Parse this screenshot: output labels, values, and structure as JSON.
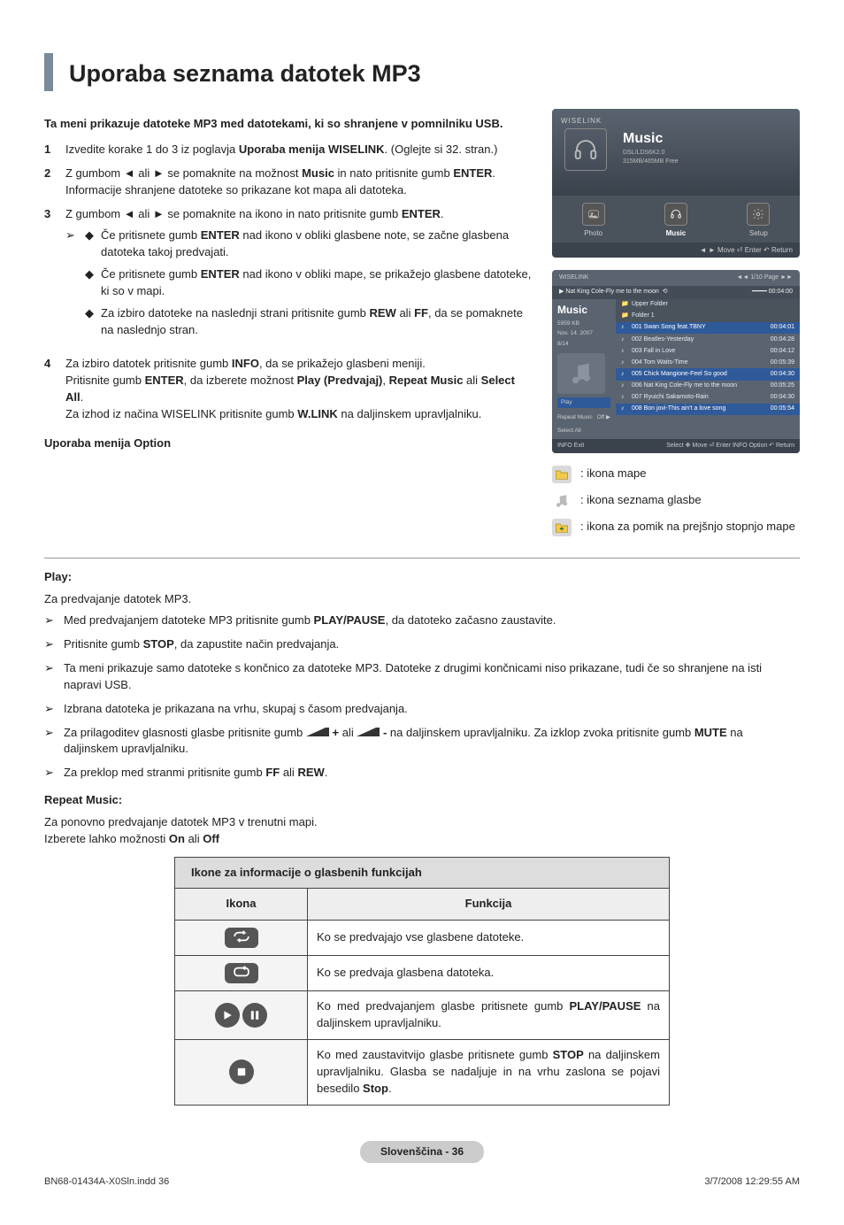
{
  "title": "Uporaba seznama datotek MP3",
  "intro": "Ta meni prikazuje datoteke MP3 med datotekami, ki so shranjene v pomnilniku USB.",
  "steps": [
    {
      "num": "1",
      "html": "Izvedite korake 1 do 3 iz poglavja <b>Uporaba menija WISELINK</b>. (Oglejte si 32. stran.)"
    },
    {
      "num": "2",
      "html": "Z gumbom ◄ ali ► se pomaknite na možnost <b>Music</b> in nato pritisnite gumb <b>ENTER</b>. Informacije shranjene datoteke so prikazane kot mapa ali datoteka."
    },
    {
      "num": "3",
      "html": "Z gumbom ◄ ali ► se pomaknite na ikono in nato pritisnite gumb <b>ENTER</b>.",
      "diamonds": [
        "Če pritisnete gumb <b>ENTER</b> nad ikono v obliki glasbene note, se začne glasbena datoteka takoj predvajati.",
        "Če pritisnete gumb <b>ENTER</b> nad ikono v obliki mape, se prikažejo glasbene datoteke, ki so v mapi.",
        "Za izbiro datoteke na naslednji strani pritisnite gumb <b>REW</b> ali <b>FF</b>, da se pomaknete na naslednjo stran."
      ]
    },
    {
      "num": "4",
      "html": "Za izbiro datotek pritisnite gumb <b>INFO</b>, da se prikažejo glasbeni meniji.<br>Pritisnite gumb <b>ENTER</b>, da izberete možnost <b>Play (Predvajaj)</b>, <b>Repeat Music</b> ali <b>Select All</b>.<br>Za izhod iz načina WISELINK pritisnite gumb <b>W.LINK</b> na daljinskem upravljalniku."
    }
  ],
  "option_heading": "Uporaba menija Option",
  "play": {
    "label": "Play:",
    "sub": "Za predvajanje datotek MP3.",
    "notes": [
      "Med predvajanjem datoteke MP3 pritisnite gumb <b>PLAY/PAUSE</b>, da datoteko začasno zaustavite.",
      "Pritisnite gumb <b>STOP</b>, da zapustite način predvajanja.",
      "Ta meni prikazuje samo datoteke s končnico za datoteke MP3. Datoteke z drugimi končnicami niso prikazane, tudi če so shranjene na isti napravi USB.",
      "Izbrana datoteka je prikazana na vrhu, skupaj s časom predvajanja.",
      "Za prilagoditev glasnosti glasbe pritisnite gumb <span class=\"vol-icon\"></span> <b>+</b> ali <span class=\"vol-icon\"></span> <b>-</b> na daljinskem upravljalniku. Za izklop zvoka pritisnite gumb <b>MUTE</b> na daljinskem upravljalniku.",
      "Za preklop med stranmi pritisnite gumb <b>FF</b> ali <b>REW</b>."
    ]
  },
  "repeat": {
    "label": "Repeat Music:",
    "line1": "Za ponovno predvajanje datotek MP3 v trenutni mapi.",
    "line2": "Izberete lahko možnosti <b>On</b> ali <b>Off</b>"
  },
  "table": {
    "heading": "Ikone za informacije o glasbenih funkcijah",
    "col1": "Ikona",
    "col2": "Funkcija",
    "rows": [
      {
        "icon": "repeat-all",
        "text": "Ko se predvajajo vse glasbene datoteke."
      },
      {
        "icon": "repeat-one",
        "text": "Ko se predvaja glasbena datoteka."
      },
      {
        "icon": "play-pause",
        "html": "Ko med predvajanjem glasbe pritisnete gumb <b>PLAY/PAUSE</b> na daljinskem upravljalniku."
      },
      {
        "icon": "stop",
        "html": "Ko med zaustavitvijo glasbe pritisnete gumb <b>STOP</b> na daljinskem upravljalniku. Glasba se nadaljuje in na vrhu zaslona se pojavi besedilo <b>Stop</b>."
      }
    ]
  },
  "screenshot1": {
    "logo": "WISELINK",
    "title": "Music",
    "sub1": "DSL/LDS6K2.0",
    "sub2": "315MB/465MB Free",
    "menu": [
      {
        "l": "Photo"
      },
      {
        "l": "Music"
      },
      {
        "l": "Setup"
      }
    ],
    "footer": "◄ ► Move   ⏎ Enter   ↶ Return"
  },
  "screenshot2": {
    "logo": "WISELINK",
    "pagehint": "◄◄ 1/10 Page ►►",
    "nowplaying": "Nat King Cole-Fly me to the moon",
    "time": "00:04:00",
    "panel_title": "Music",
    "info1": "5959 KB",
    "info2": "Nov. 14. 2007",
    "info3": "8/14",
    "ctrl_play": "Play",
    "ctrl_repeat": "Repeat Music",
    "ctrl_repeat_val": "Off ▶",
    "ctrl_select": "Select All",
    "rows": [
      {
        "t": "Upper Folder",
        "d": "",
        "k": "folder"
      },
      {
        "t": "Folder 1",
        "d": "",
        "k": "folder"
      },
      {
        "t": "001 Swan Song feat.TBNY",
        "d": "00:04:01",
        "k": "blue"
      },
      {
        "t": "002 Beatles-Yesterday",
        "d": "00:04:28",
        "k": ""
      },
      {
        "t": "003 Fall in Love",
        "d": "00:04:12",
        "k": ""
      },
      {
        "t": "004 Tom Waits-Time",
        "d": "00:05:39",
        "k": ""
      },
      {
        "t": "005 Chick Mangione-Feel So good",
        "d": "00:04:30",
        "k": "blue"
      },
      {
        "t": "006 Nat King Cole-Fly me to the moon",
        "d": "00:05:25",
        "k": ""
      },
      {
        "t": "007 Ryuichi Sakamoto-Rain",
        "d": "00:04:30",
        "k": ""
      },
      {
        "t": "008 Bon jovi-This ain't a love song",
        "d": "00:05:54",
        "k": "blue"
      }
    ],
    "foot_left": "INFO  Exit",
    "foot_right": "Select  ✥ Move  ⏎ Enter  INFO Option  ↶ Return"
  },
  "legend": [
    {
      "k": "folder",
      "t": ": ikona mape"
    },
    {
      "k": "note",
      "t": ": ikona seznama glasbe"
    },
    {
      "k": "up",
      "t": ": ikona za pomik na prejšnjo stopnjo mape"
    }
  ],
  "page_badge": "Slovenščina - 36",
  "footer_left": "BN68-01434A-X0Sln.indd   36",
  "footer_right": "3/7/2008   12:29:55 AM"
}
